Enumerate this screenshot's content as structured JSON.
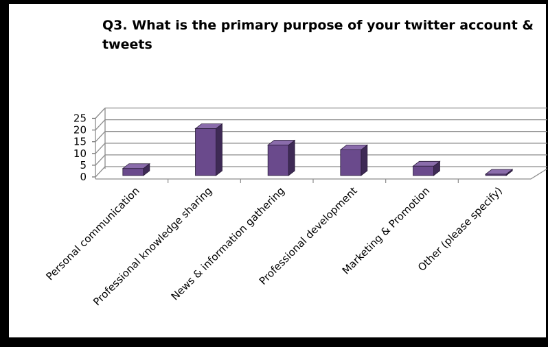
{
  "chart_data": {
    "type": "bar",
    "title_line1": "Q3. What is the primary purpose of your twitter account &",
    "title_line2": "tweets",
    "categories": [
      "Personal communication",
      "Professional knowledge sharing",
      "News & information gathering",
      "Professional development",
      "Marketing & Promotion",
      "Other (please specify)"
    ],
    "values": [
      3,
      20,
      13,
      11,
      4,
      0
    ],
    "ylim": [
      0,
      25
    ],
    "yticks": [
      "0",
      "5",
      "10",
      "15",
      "20",
      "25"
    ],
    "grid": true,
    "three_d": true,
    "bar_color": "#6a4a8c",
    "legend": "none"
  }
}
